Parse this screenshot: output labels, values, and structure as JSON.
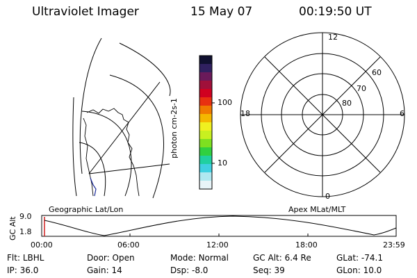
{
  "header": {
    "instrument": "Ultraviolet Imager",
    "date": "15 May 07",
    "time": "00:19:50 UT"
  },
  "colorbar": {
    "label": "photon cm-2s-1",
    "ticks": [
      "100",
      "10"
    ],
    "colors": [
      "#101030",
      "#302060",
      "#6a1a5a",
      "#a0103a",
      "#d00020",
      "#e83010",
      "#f07a00",
      "#f4b800",
      "#f0f020",
      "#c8f020",
      "#7ee020",
      "#30d040",
      "#20d0a0",
      "#40d0e0",
      "#b0e8f0",
      "#e8f4f8"
    ]
  },
  "left_panel": {
    "label": "Geographic Lat/Lon"
  },
  "right_panel": {
    "label": "Apex MLat/MLT",
    "mlt_labels": {
      "top": "12",
      "bottom": "0",
      "left": "18",
      "right": "6"
    },
    "lat_labels": [
      "60",
      "70",
      "80"
    ]
  },
  "altitude_plot": {
    "ylabel": "GC Alt",
    "yticks": [
      "9.0",
      "1.8"
    ],
    "xticks": [
      "00:00",
      "06:00",
      "12:00",
      "18:00",
      "23:59"
    ]
  },
  "status": {
    "row1": [
      {
        "key": "Flt:",
        "value": "LBHL"
      },
      {
        "key": "Door:",
        "value": "Open"
      },
      {
        "key": "Mode:",
        "value": "Normal"
      },
      {
        "key": "GC Alt:",
        "value": "6.4 Re"
      },
      {
        "key": "GLat:",
        "value": "-74.1"
      }
    ],
    "row2": [
      {
        "key": "IP:",
        "value": "36.0"
      },
      {
        "key": "Gain:",
        "value": "14"
      },
      {
        "key": "Dsp:",
        "value": "-8.0"
      },
      {
        "key": "Seq:",
        "value": "39"
      },
      {
        "key": "GLon:",
        "value": "10.0"
      }
    ]
  }
}
